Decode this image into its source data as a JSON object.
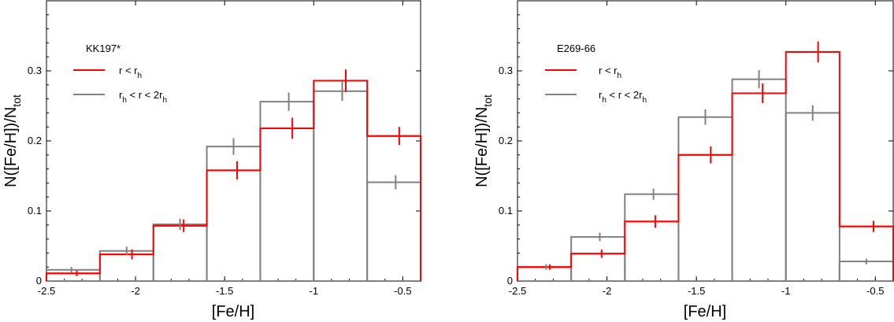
{
  "chart_data": [
    {
      "type": "histogram",
      "title": "KK197*",
      "xlabel": "[Fe/H]",
      "ylabel": "N([Fe/H])/N_tot",
      "xlim": [
        -2.5,
        -0.4
      ],
      "ylim": [
        0,
        0.4
      ],
      "x_ticks": [
        -2.5,
        -2,
        -1.5,
        -1,
        -0.5
      ],
      "x_tick_labels": [
        "-2.5",
        "-2",
        "-1.5",
        "-1",
        "-0.5"
      ],
      "y_ticks": [
        0,
        0.1,
        0.2,
        0.3
      ],
      "y_tick_labels": [
        "0",
        "0.1",
        "0.2",
        "0.3"
      ],
      "bin_edges": [
        -2.5,
        -2.2,
        -1.9,
        -1.6,
        -1.3,
        -1.0,
        -0.7,
        -0.4
      ],
      "series": [
        {
          "name": "r < r_h",
          "color": "#ff0000",
          "values": [
            0.011,
            0.038,
            0.079,
            0.158,
            0.218,
            0.286,
            0.207
          ],
          "points_x": [
            -2.33,
            -2.02,
            -1.73,
            -1.43,
            -1.12,
            -0.82,
            -0.52
          ],
          "errors": [
            0.004,
            0.007,
            0.009,
            0.013,
            0.015,
            0.016,
            0.013
          ]
        },
        {
          "name": "r_h < r < 2r_h",
          "color": "#808080",
          "values": [
            0.016,
            0.043,
            0.081,
            0.192,
            0.256,
            0.271,
            0.141
          ],
          "points_x": [
            -2.36,
            -2.05,
            -1.75,
            -1.45,
            -1.14,
            -0.84,
            -0.54
          ],
          "errors": [
            0.004,
            0.006,
            0.008,
            0.012,
            0.013,
            0.014,
            0.01
          ]
        }
      ],
      "legend": {
        "title": "KK197*",
        "entries": [
          {
            "label_main": "r < r",
            "label_sub": "h",
            "label_tail": ""
          },
          {
            "label_main": "r",
            "label_sub": "h",
            "label_tail": " < r < 2r",
            "label_sub2": "h"
          }
        ]
      }
    },
    {
      "type": "histogram",
      "title": "E269-66",
      "xlabel": "[Fe/H]",
      "ylabel": "N([Fe/H])/N_tot",
      "xlim": [
        -2.5,
        -0.4
      ],
      "ylim": [
        0,
        0.4
      ],
      "x_ticks": [
        -2.5,
        -2,
        -1.5,
        -1,
        -0.5
      ],
      "x_tick_labels": [
        "-2.5",
        "-2",
        "-1.5",
        "-1",
        "-0.5"
      ],
      "y_ticks": [
        0,
        0.1,
        0.2,
        0.3
      ],
      "y_tick_labels": [
        "0",
        "0.1",
        "0.2",
        "0.3"
      ],
      "bin_edges": [
        -2.5,
        -2.2,
        -1.9,
        -1.6,
        -1.3,
        -1.0,
        -0.7,
        -0.4
      ],
      "series": [
        {
          "name": "r < r_h",
          "color": "#ff0000",
          "values": [
            0.02,
            0.039,
            0.085,
            0.18,
            0.268,
            0.327,
            0.078
          ],
          "points_x": [
            -2.32,
            -2.03,
            -1.73,
            -1.42,
            -1.13,
            -0.82,
            -0.51
          ],
          "errors": [
            0.004,
            0.006,
            0.009,
            0.012,
            0.014,
            0.015,
            0.008
          ]
        },
        {
          "name": "r_h < r < 2r_h",
          "color": "#808080",
          "values": [
            0.02,
            0.063,
            0.124,
            0.234,
            0.288,
            0.24,
            0.028
          ],
          "points_x": [
            -2.34,
            -2.04,
            -1.74,
            -1.45,
            -1.15,
            -0.85,
            -0.55
          ],
          "errors": [
            0.004,
            0.006,
            0.008,
            0.011,
            0.013,
            0.011,
            0.004
          ]
        }
      ],
      "legend": {
        "title": "E269-66",
        "entries": [
          {
            "label_main": "r < r",
            "label_sub": "h",
            "label_tail": ""
          },
          {
            "label_main": "r",
            "label_sub": "h",
            "label_tail": " < r < 2r",
            "label_sub2": "h"
          }
        ]
      }
    }
  ]
}
